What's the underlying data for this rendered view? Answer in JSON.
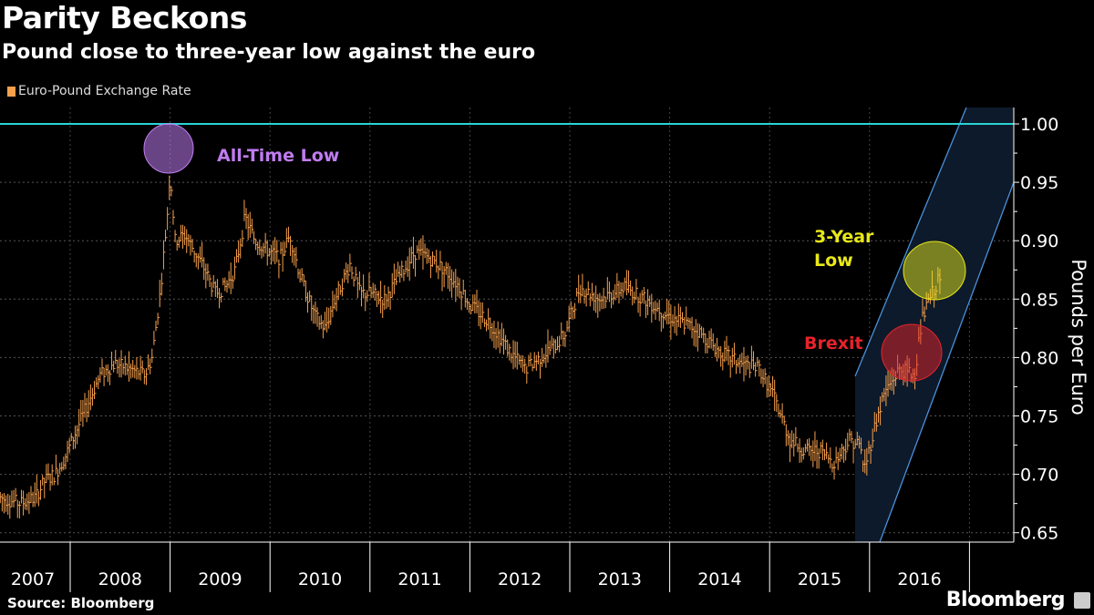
{
  "header": {
    "title": "Parity Beckons",
    "subtitle": "Pound close to three-year low against the euro"
  },
  "footer": {
    "source": "Source: Bloomberg",
    "brand": "Bloomberg"
  },
  "colors": {
    "series": "#f6a04d",
    "parity_line": "#2ad4d4",
    "channel": "#4a90d9",
    "all_time_low": "#c07cf0",
    "three_year_low": "#e8e81a",
    "brexit": "#e8232a"
  },
  "chart_data": {
    "type": "line",
    "title": "Parity Beckons",
    "legend": [
      "Euro-Pound Exchange Rate"
    ],
    "legend_position": "top-left",
    "ylabel": "Pounds per Euro",
    "ylim": [
      0.64,
      1.02
    ],
    "yticks": [
      "0.65",
      "0.70",
      "0.75",
      "0.80",
      "0.85",
      "0.90",
      "0.95",
      "1.00"
    ],
    "xticks": [
      "2007",
      "2008",
      "2009",
      "2010",
      "2011",
      "2012",
      "2013",
      "2014",
      "2015",
      "2016"
    ],
    "reference_line": 1.0,
    "series": [
      {
        "name": "Euro-Pound Exchange Rate",
        "points": [
          [
            2007.3,
            0.68
          ],
          [
            2007.5,
            0.675
          ],
          [
            2007.65,
            0.68
          ],
          [
            2007.75,
            0.695
          ],
          [
            2007.85,
            0.7
          ],
          [
            2007.95,
            0.715
          ],
          [
            2008.05,
            0.735
          ],
          [
            2008.15,
            0.755
          ],
          [
            2008.3,
            0.785
          ],
          [
            2008.45,
            0.795
          ],
          [
            2008.6,
            0.79
          ],
          [
            2008.75,
            0.785
          ],
          [
            2008.82,
            0.8
          ],
          [
            2008.9,
            0.855
          ],
          [
            2008.97,
            0.92
          ],
          [
            2009.0,
            0.96
          ],
          [
            2009.05,
            0.9
          ],
          [
            2009.15,
            0.905
          ],
          [
            2009.25,
            0.89
          ],
          [
            2009.35,
            0.875
          ],
          [
            2009.45,
            0.855
          ],
          [
            2009.55,
            0.86
          ],
          [
            2009.65,
            0.875
          ],
          [
            2009.75,
            0.92
          ],
          [
            2009.85,
            0.9
          ],
          [
            2010.0,
            0.89
          ],
          [
            2010.1,
            0.885
          ],
          [
            2010.2,
            0.905
          ],
          [
            2010.3,
            0.87
          ],
          [
            2010.45,
            0.835
          ],
          [
            2010.55,
            0.825
          ],
          [
            2010.65,
            0.85
          ],
          [
            2010.8,
            0.88
          ],
          [
            2010.9,
            0.855
          ],
          [
            2011.0,
            0.855
          ],
          [
            2011.15,
            0.85
          ],
          [
            2011.3,
            0.87
          ],
          [
            2011.45,
            0.89
          ],
          [
            2011.6,
            0.885
          ],
          [
            2011.75,
            0.875
          ],
          [
            2011.9,
            0.86
          ],
          [
            2012.0,
            0.845
          ],
          [
            2012.2,
            0.83
          ],
          [
            2012.4,
            0.805
          ],
          [
            2012.55,
            0.79
          ],
          [
            2012.7,
            0.8
          ],
          [
            2012.85,
            0.81
          ],
          [
            2012.95,
            0.82
          ],
          [
            2013.1,
            0.86
          ],
          [
            2013.3,
            0.85
          ],
          [
            2013.55,
            0.86
          ],
          [
            2013.75,
            0.85
          ],
          [
            2014.0,
            0.835
          ],
          [
            2014.25,
            0.825
          ],
          [
            2014.5,
            0.805
          ],
          [
            2014.7,
            0.795
          ],
          [
            2014.9,
            0.79
          ],
          [
            2015.05,
            0.765
          ],
          [
            2015.2,
            0.73
          ],
          [
            2015.35,
            0.72
          ],
          [
            2015.5,
            0.72
          ],
          [
            2015.65,
            0.71
          ],
          [
            2015.8,
            0.73
          ],
          [
            2015.9,
            0.725
          ],
          [
            2015.95,
            0.705
          ],
          [
            2016.05,
            0.74
          ],
          [
            2016.15,
            0.77
          ],
          [
            2016.3,
            0.79
          ],
          [
            2016.45,
            0.785
          ],
          [
            2016.52,
            0.83
          ],
          [
            2016.6,
            0.85
          ],
          [
            2016.68,
            0.865
          ],
          [
            2016.72,
            0.865
          ]
        ]
      }
    ],
    "annotations": [
      {
        "text": "All-Time Low",
        "x": 2008.98,
        "y": 0.98
      },
      {
        "text": "3-Year Low",
        "x": 2016.7,
        "y": 0.875
      },
      {
        "text": "Brexit",
        "x": 2016.48,
        "y": 0.787
      }
    ]
  }
}
